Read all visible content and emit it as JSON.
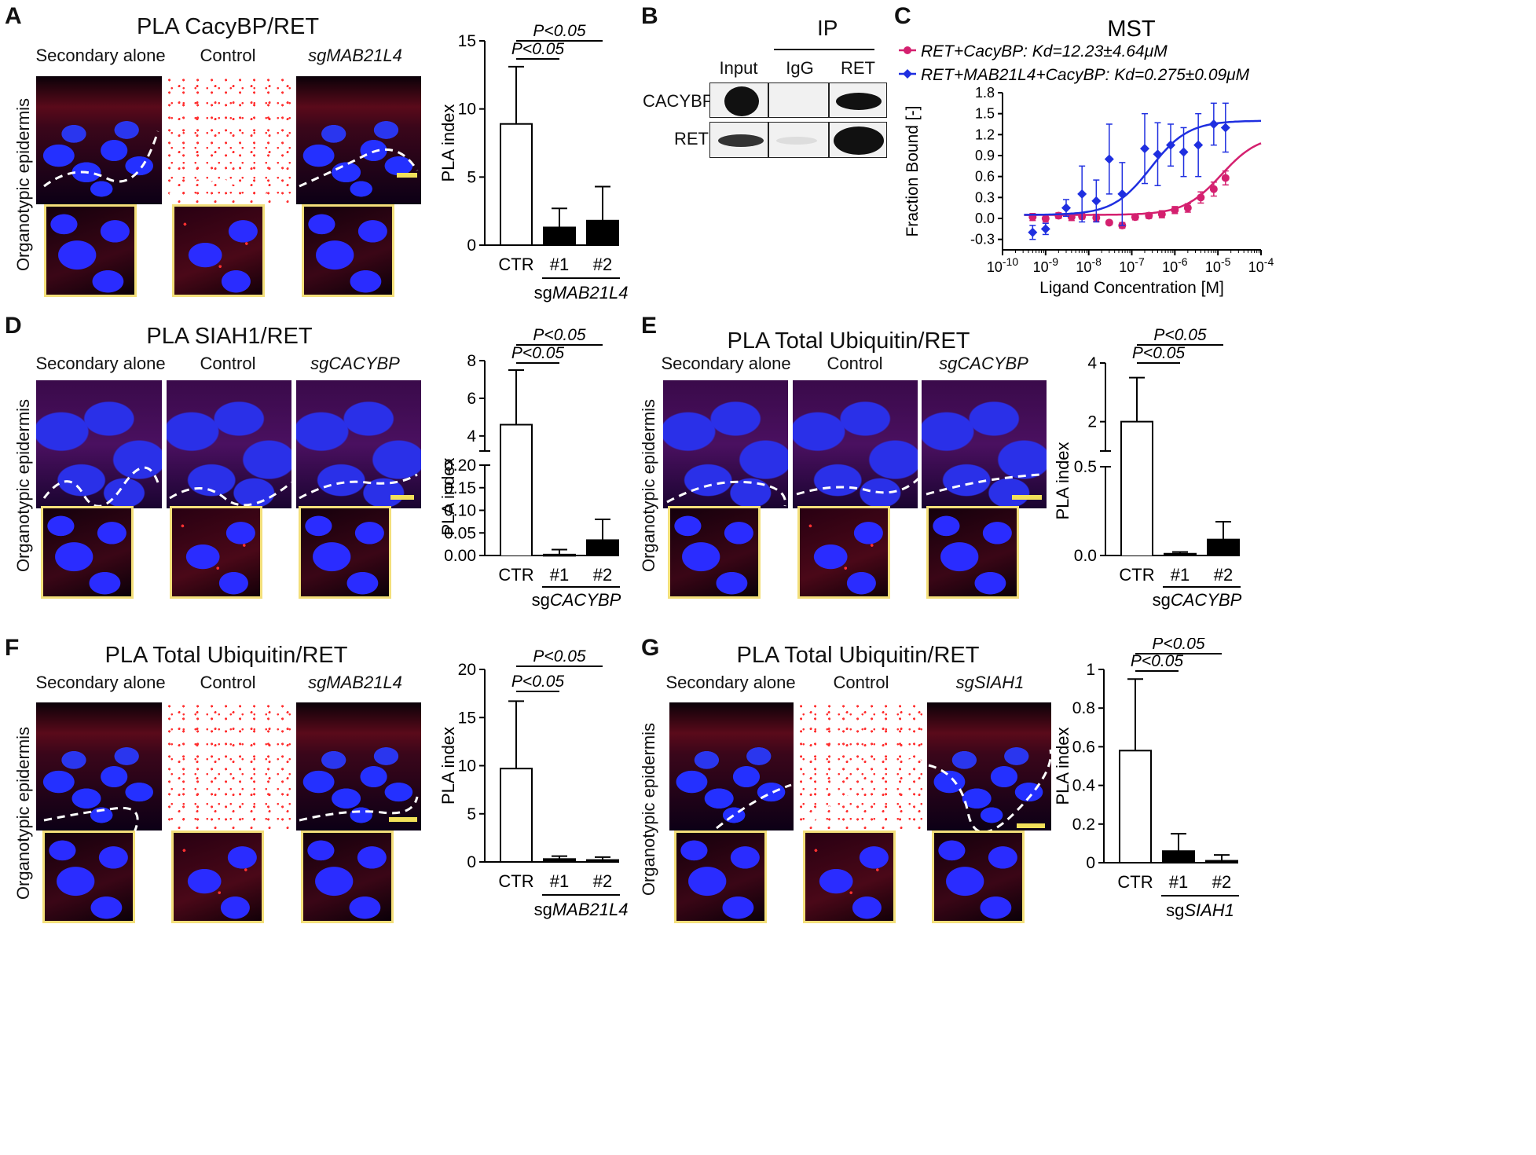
{
  "figure": {
    "panels": {
      "A": {
        "letter": "A",
        "title": "PLA CacyBP/RET",
        "cols": [
          "Secondary alone",
          "Control",
          "sgMAB21L4"
        ],
        "ylabel": "Organotypic epidermis"
      },
      "B": {
        "letter": "B",
        "ip_label": "IP",
        "lanes": [
          "Input",
          "IgG",
          "RET"
        ],
        "rows": [
          "CACYBP",
          "RET"
        ]
      },
      "C": {
        "letter": "C",
        "title": "MST"
      },
      "D": {
        "letter": "D",
        "title": "PLA SIAH1/RET",
        "cols": [
          "Secondary alone",
          "Control",
          "sgCACYBP"
        ],
        "ylabel": "Organotypic epidermis"
      },
      "E": {
        "letter": "E",
        "title": "PLA Total Ubiquitin/RET",
        "cols": [
          "Secondary alone",
          "Control",
          "sgCACYBP"
        ],
        "ylabel": "Organotypic epidermis"
      },
      "F": {
        "letter": "F",
        "title": "PLA Total Ubiquitin/RET",
        "cols": [
          "Secondary alone",
          "Control",
          "sgMAB21L4"
        ],
        "ylabel": "Organotypic epidermis"
      },
      "G": {
        "letter": "G",
        "title": "PLA Total Ubiquitin/RET",
        "cols": [
          "Secondary alone",
          "Control",
          "sgSIAH1"
        ],
        "ylabel": "Organotypic epidermis"
      }
    }
  },
  "chart_data": [
    {
      "id": "A",
      "type": "bar",
      "categories": [
        "CTR",
        "#1",
        "#2"
      ],
      "group_label": "sgMAB21L4",
      "ylabel": "PLA index",
      "ylim": [
        0,
        15
      ],
      "yticks": [
        0,
        5,
        10,
        15
      ],
      "values": [
        8.9,
        1.3,
        1.8
      ],
      "errors": [
        4.2,
        1.4,
        2.5
      ],
      "fills": [
        "#ffffff",
        "#000000",
        "#000000"
      ],
      "annotations": [
        "P<0.05",
        "P<0.05"
      ]
    },
    {
      "id": "C",
      "type": "scatter",
      "title": "MST",
      "xlabel": "Ligand Concentration [M]",
      "ylabel": "Fraction Bound [-]",
      "xscale": "log",
      "xlim": [
        1e-10,
        0.0001
      ],
      "ylim": [
        -0.45,
        1.8
      ],
      "xticks": [
        "10-10",
        "10-9",
        "10-8",
        "10-7",
        "10-6",
        "10-5",
        "10-4"
      ],
      "yticks": [
        -0.3,
        0.0,
        0.3,
        0.6,
        0.9,
        1.2,
        1.5,
        1.8
      ],
      "series": [
        {
          "name": "RET+CacyBP: Kd=12.23±4.64μM",
          "color": "#d4206f",
          "marker": "circle",
          "x": [
            5e-10,
            1e-09,
            2e-09,
            4e-09,
            7e-09,
            1.5e-08,
            3e-08,
            6e-08,
            1.2e-07,
            2.5e-07,
            5e-07,
            1e-06,
            2e-06,
            4e-06,
            8e-06,
            1.5e-05
          ],
          "y": [
            0.02,
            0.0,
            0.04,
            0.02,
            0.03,
            0.01,
            -0.06,
            -0.1,
            0.02,
            0.04,
            0.06,
            0.12,
            0.15,
            0.3,
            0.42,
            0.58
          ],
          "err": [
            0.05,
            0.05,
            0.04,
            0.05,
            0.04,
            0.05,
            0.03,
            0.04,
            0.04,
            0.04,
            0.05,
            0.05,
            0.06,
            0.08,
            0.1,
            0.1
          ]
        },
        {
          "name": "RET+MAB21L4+CacyBP: Kd=0.275±0.09μM",
          "color": "#1f2fe0",
          "marker": "diamond",
          "x": [
            5e-10,
            1e-09,
            3e-09,
            7e-09,
            1.5e-08,
            3e-08,
            6e-08,
            2e-07,
            4e-07,
            8e-07,
            1.6e-06,
            3.5e-06,
            8e-06,
            1.5e-05
          ],
          "y": [
            -0.2,
            -0.15,
            0.15,
            0.35,
            0.25,
            0.85,
            0.35,
            1.0,
            0.92,
            1.05,
            0.95,
            1.05,
            1.35,
            1.3
          ],
          "err": [
            0.1,
            0.08,
            0.12,
            0.4,
            0.3,
            0.5,
            0.45,
            0.5,
            0.45,
            0.3,
            0.35,
            0.45,
            0.3,
            0.35
          ]
        }
      ]
    },
    {
      "id": "D",
      "type": "bar",
      "categories": [
        "CTR",
        "#1",
        "#2"
      ],
      "group_label": "CACYBP",
      "group_prefix": "sg",
      "ylabel": "PLA index",
      "broken_axis": true,
      "upper_yticks": [
        4,
        6,
        8
      ],
      "lower_yticks": [
        0.0,
        0.05,
        0.1,
        0.15,
        0.2
      ],
      "values": [
        4.6,
        0.002,
        0.034
      ],
      "errors": [
        2.9,
        0.011,
        0.046
      ],
      "fills": [
        "#ffffff",
        "#000000",
        "#000000"
      ],
      "annotations": [
        "P<0.05",
        "P<0.05"
      ]
    },
    {
      "id": "E",
      "type": "bar",
      "categories": [
        "CTR",
        "#1",
        "#2"
      ],
      "group_label": "CACYBP",
      "group_prefix": "sg",
      "ylabel": "PLA index",
      "broken_axis": true,
      "upper_yticks": [
        2,
        4
      ],
      "lower_yticks": [
        0.0,
        0.5
      ],
      "values": [
        2.0,
        0.01,
        0.09
      ],
      "errors": [
        1.5,
        0.01,
        0.1
      ],
      "fills": [
        "#ffffff",
        "#000000",
        "#000000"
      ],
      "annotations": [
        "P<0.05",
        "P<0.05"
      ]
    },
    {
      "id": "F",
      "type": "bar",
      "categories": [
        "CTR",
        "#1",
        "#2"
      ],
      "group_label": "MAB21L4",
      "group_prefix": "sg",
      "ylabel": "PLA index",
      "ylim": [
        0,
        20
      ],
      "yticks": [
        0,
        5,
        10,
        15,
        20
      ],
      "values": [
        9.7,
        0.3,
        0.2
      ],
      "errors": [
        7.0,
        0.3,
        0.3
      ],
      "fills": [
        "#ffffff",
        "#000000",
        "#000000"
      ],
      "annotations": [
        "P<0.05",
        "P<0.05"
      ]
    },
    {
      "id": "G",
      "type": "bar",
      "categories": [
        "CTR",
        "#1",
        "#2"
      ],
      "group_label": "SIAH1",
      "group_prefix": "sg",
      "ylabel": "PLA index",
      "ylim": [
        0,
        1.0
      ],
      "yticks": [
        0.0,
        0.2,
        0.4,
        0.6,
        0.8,
        1.0
      ],
      "values": [
        0.58,
        0.06,
        0.01
      ],
      "errors": [
        0.37,
        0.09,
        0.03
      ],
      "fills": [
        "#ffffff",
        "#000000",
        "#000000"
      ],
      "annotations": [
        "P<0.05",
        "P<0.05"
      ]
    }
  ]
}
